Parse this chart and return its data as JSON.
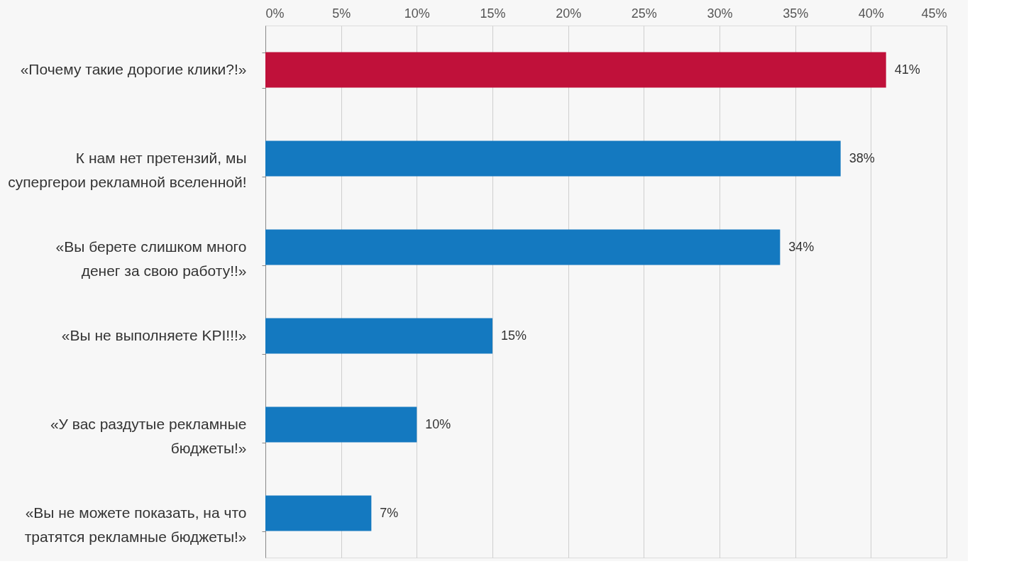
{
  "chart_data": {
    "type": "bar",
    "orientation": "horizontal",
    "categories": [
      "«Почему такие дорогие клики?!»",
      "К нам нет претензий, мы\nсупергерои рекламной вселенной!",
      "«Вы берете слишком много\nденег за свою работу!!»",
      "«Вы не выполняете KPI!!!»",
      "«У вас раздутые рекламные\nбюджеты!»",
      "«Вы не можете показать, на что\nтратятся рекламные бюджеты!»"
    ],
    "values": [
      41,
      38,
      34,
      15,
      10,
      7
    ],
    "value_labels": [
      "41%",
      "38%",
      "34%",
      "15%",
      "10%",
      "7%"
    ],
    "colors": [
      "#c0113a",
      "#1479c0",
      "#1479c0",
      "#1479c0",
      "#1479c0",
      "#1479c0"
    ],
    "xlim": [
      0,
      45
    ],
    "xticks": [
      {
        "value": 0,
        "label": "0%"
      },
      {
        "value": 5,
        "label": "5%"
      },
      {
        "value": 10,
        "label": "10%"
      },
      {
        "value": 15,
        "label": "15%"
      },
      {
        "value": 20,
        "label": "20%"
      },
      {
        "value": 25,
        "label": "25%"
      },
      {
        "value": 30,
        "label": "30%"
      },
      {
        "value": 35,
        "label": "35%"
      },
      {
        "value": 40,
        "label": "40%"
      },
      {
        "value": 45,
        "label": "45%"
      }
    ],
    "grid": true
  }
}
